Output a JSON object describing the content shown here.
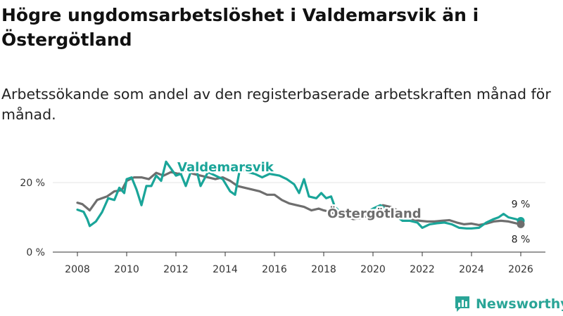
{
  "title": "Högre ungdomsarbetslöshet i Valdemarsvik än i Östergötland",
  "subtitle": "Arbetssökande som andel av den registerbaserade arbetskraften månad för månad.",
  "logo_text": "Newsworthy",
  "colors": {
    "valdemarsvik": "#1aa599",
    "ostergotland": "#6e6e6e",
    "axis": "#333333",
    "grid": "#e6e6e6"
  },
  "chart_data": {
    "type": "line",
    "title": "Högre ungdomsarbetslöshet i Valdemarsvik än i Östergötland",
    "subtitle": "Arbetssökande som andel av den registerbaserade arbetskraften månad för månad.",
    "xlim": [
      2007.0,
      2027.0
    ],
    "ylim": [
      0,
      23
    ],
    "yticks": [
      {
        "value": 0,
        "label": "0 %"
      },
      {
        "value": 20,
        "label": "20 %"
      }
    ],
    "xticks": [
      {
        "value": 2008,
        "label": "2008"
      },
      {
        "value": 2010,
        "label": "2010"
      },
      {
        "value": 2012,
        "label": "2012"
      },
      {
        "value": 2014,
        "label": "2014"
      },
      {
        "value": 2016,
        "label": "2016"
      },
      {
        "value": 2018,
        "label": "2018"
      },
      {
        "value": 2020,
        "label": "2020"
      },
      {
        "value": 2022,
        "label": "2022"
      },
      {
        "value": 2024,
        "label": "2024"
      },
      {
        "value": 2026,
        "label": "2026"
      }
    ],
    "legend": "inline labels",
    "series": [
      {
        "name": "Valdemarsvik",
        "color": "#1aa599",
        "end_label": "9 %",
        "points": [
          [
            2008.0,
            12.2
          ],
          [
            2008.25,
            11.6
          ],
          [
            2008.4,
            9.5
          ],
          [
            2008.5,
            7.5
          ],
          [
            2008.75,
            8.8
          ],
          [
            2009.0,
            11.5
          ],
          [
            2009.25,
            15.5
          ],
          [
            2009.5,
            15.0
          ],
          [
            2009.7,
            18.5
          ],
          [
            2009.9,
            17.0
          ],
          [
            2010.0,
            21.0
          ],
          [
            2010.2,
            21.5
          ],
          [
            2010.4,
            18.0
          ],
          [
            2010.6,
            13.5
          ],
          [
            2010.8,
            19.0
          ],
          [
            2011.0,
            19.0
          ],
          [
            2011.2,
            22.0
          ],
          [
            2011.4,
            20.5
          ],
          [
            2011.6,
            26.0
          ],
          [
            2011.8,
            24.0
          ],
          [
            2012.0,
            22.0
          ],
          [
            2012.2,
            22.5
          ],
          [
            2012.4,
            19.0
          ],
          [
            2012.6,
            23.0
          ],
          [
            2012.8,
            24.5
          ],
          [
            2013.0,
            19.0
          ],
          [
            2013.3,
            23.0
          ],
          [
            2013.6,
            22.0
          ],
          [
            2013.9,
            21.0
          ],
          [
            2014.2,
            17.5
          ],
          [
            2014.4,
            16.5
          ],
          [
            2014.6,
            24.0
          ],
          [
            2014.9,
            23.0
          ],
          [
            2015.2,
            22.5
          ],
          [
            2015.5,
            21.5
          ],
          [
            2015.8,
            22.5
          ],
          [
            2016.2,
            22.0
          ],
          [
            2016.5,
            21.0
          ],
          [
            2016.8,
            19.5
          ],
          [
            2017.0,
            17.0
          ],
          [
            2017.2,
            21.0
          ],
          [
            2017.4,
            16.0
          ],
          [
            2017.7,
            15.5
          ],
          [
            2017.9,
            17.0
          ],
          [
            2018.1,
            15.5
          ],
          [
            2018.3,
            16.0
          ],
          [
            2018.45,
            13.0
          ],
          [
            2018.6,
            12.0
          ],
          [
            2018.8,
            11.0
          ],
          [
            2019.0,
            10.5
          ],
          [
            2019.3,
            10.0
          ],
          [
            2019.6,
            11.0
          ],
          [
            2020.0,
            12.5
          ],
          [
            2020.3,
            13.5
          ],
          [
            2020.6,
            12.0
          ],
          [
            2020.9,
            10.5
          ],
          [
            2021.2,
            9.0
          ],
          [
            2021.5,
            9.0
          ],
          [
            2021.8,
            8.5
          ],
          [
            2022.0,
            7.0
          ],
          [
            2022.3,
            8.0
          ],
          [
            2022.6,
            8.3
          ],
          [
            2022.9,
            8.5
          ],
          [
            2023.2,
            8.0
          ],
          [
            2023.5,
            7.0
          ],
          [
            2023.8,
            6.8
          ],
          [
            2024.0,
            6.8
          ],
          [
            2024.3,
            7.0
          ],
          [
            2024.6,
            8.5
          ],
          [
            2024.9,
            9.5
          ],
          [
            2025.1,
            10.0
          ],
          [
            2025.3,
            11.0
          ],
          [
            2025.5,
            10.0
          ],
          [
            2025.8,
            9.5
          ],
          [
            2026.0,
            9.0
          ]
        ]
      },
      {
        "name": "Östergötland",
        "color": "#6e6e6e",
        "end_label": "8 %",
        "points": [
          [
            2008.0,
            14.2
          ],
          [
            2008.2,
            13.8
          ],
          [
            2008.5,
            12.0
          ],
          [
            2008.8,
            15.0
          ],
          [
            2009.2,
            16.0
          ],
          [
            2009.5,
            17.5
          ],
          [
            2009.8,
            17.8
          ],
          [
            2010.0,
            20.5
          ],
          [
            2010.3,
            21.5
          ],
          [
            2010.6,
            21.5
          ],
          [
            2010.9,
            21.0
          ],
          [
            2011.2,
            22.8
          ],
          [
            2011.5,
            22.0
          ],
          [
            2011.8,
            23.0
          ],
          [
            2012.1,
            22.5
          ],
          [
            2012.4,
            23.5
          ],
          [
            2012.7,
            22.5
          ],
          [
            2013.0,
            22.0
          ],
          [
            2013.3,
            21.5
          ],
          [
            2013.6,
            21.0
          ],
          [
            2013.9,
            21.5
          ],
          [
            2014.2,
            20.5
          ],
          [
            2014.5,
            19.0
          ],
          [
            2014.8,
            18.5
          ],
          [
            2015.1,
            18.0
          ],
          [
            2015.4,
            17.5
          ],
          [
            2015.7,
            16.5
          ],
          [
            2016.0,
            16.5
          ],
          [
            2016.3,
            15.0
          ],
          [
            2016.6,
            14.0
          ],
          [
            2016.9,
            13.5
          ],
          [
            2017.2,
            13.0
          ],
          [
            2017.5,
            12.0
          ],
          [
            2017.8,
            12.5
          ],
          [
            2018.0,
            12.0
          ],
          [
            2018.3,
            11.5
          ],
          [
            2018.6,
            10.5
          ],
          [
            2018.9,
            10.0
          ],
          [
            2019.2,
            9.5
          ],
          [
            2019.5,
            9.8
          ],
          [
            2019.8,
            10.5
          ],
          [
            2020.1,
            11.5
          ],
          [
            2020.4,
            13.5
          ],
          [
            2020.7,
            13.0
          ],
          [
            2021.0,
            12.0
          ],
          [
            2021.3,
            10.5
          ],
          [
            2021.6,
            9.5
          ],
          [
            2021.9,
            9.0
          ],
          [
            2022.2,
            8.8
          ],
          [
            2022.5,
            8.8
          ],
          [
            2022.8,
            9.0
          ],
          [
            2023.1,
            9.2
          ],
          [
            2023.4,
            8.5
          ],
          [
            2023.7,
            8.0
          ],
          [
            2024.0,
            8.2
          ],
          [
            2024.3,
            7.8
          ],
          [
            2024.6,
            8.2
          ],
          [
            2024.9,
            8.8
          ],
          [
            2025.2,
            9.0
          ],
          [
            2025.5,
            8.8
          ],
          [
            2025.8,
            8.3
          ],
          [
            2026.0,
            8.0
          ]
        ]
      }
    ]
  }
}
